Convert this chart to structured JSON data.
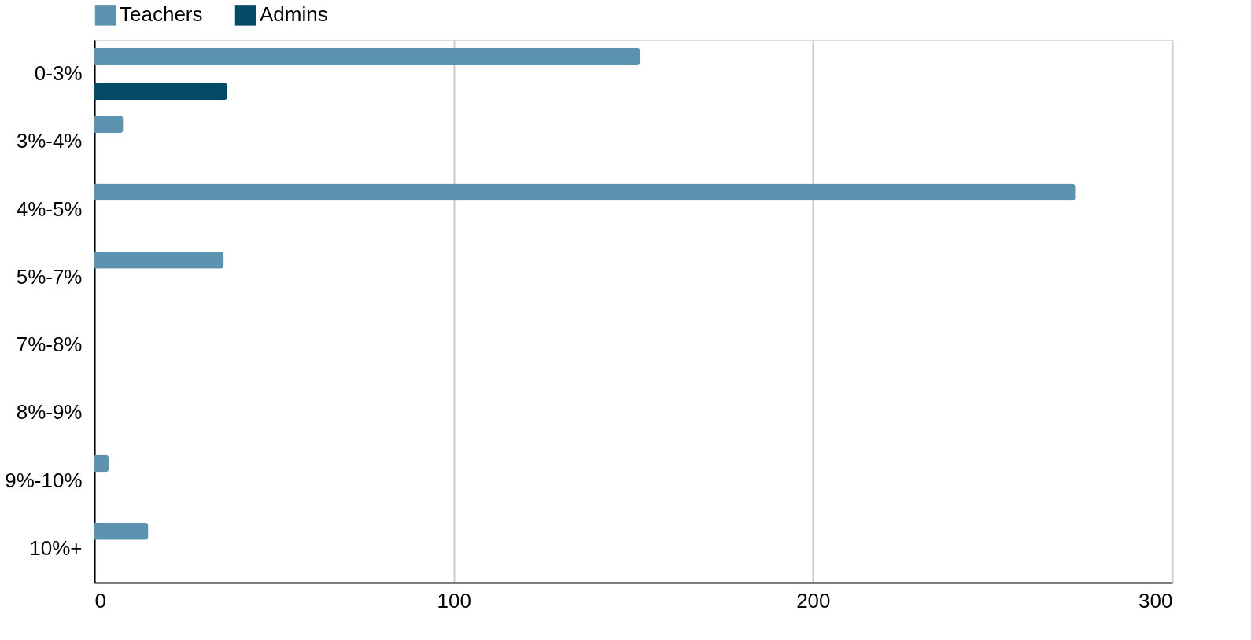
{
  "chart_data": {
    "type": "bar",
    "orientation": "horizontal",
    "categories": [
      "0-3%",
      "3%-4%",
      "4%-5%",
      "5%-7%",
      "7%-8%",
      "8%-9%",
      "9%-10%",
      "10%+"
    ],
    "series": [
      {
        "name": "Teachers",
        "color": "#5b92b0",
        "values": [
          152,
          8,
          273,
          36,
          null,
          null,
          4,
          15
        ]
      },
      {
        "name": "Admins",
        "color": "#034a66",
        "values": [
          37,
          null,
          null,
          null,
          null,
          null,
          null,
          null
        ]
      }
    ],
    "xlim": [
      0,
      300
    ],
    "xticks": [
      0,
      100,
      200,
      300
    ],
    "grid": "x",
    "legend": "top"
  }
}
